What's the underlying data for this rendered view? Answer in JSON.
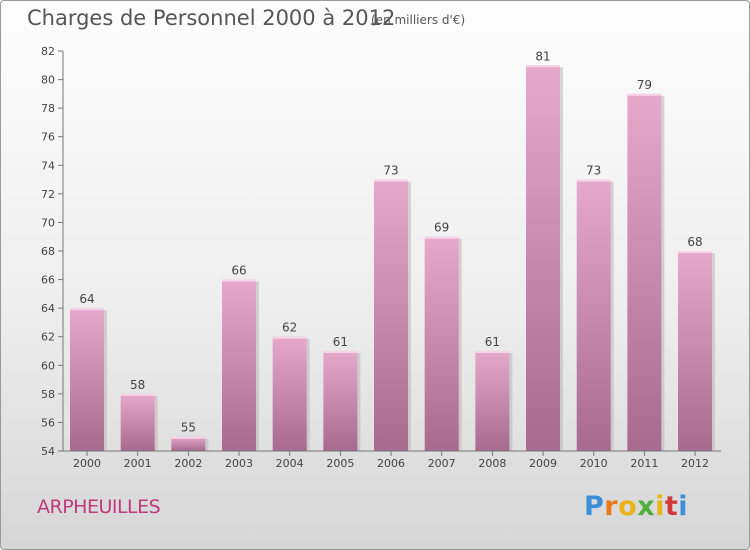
{
  "header": {
    "title": "Charges de Personnel 2000 à 2012",
    "subtitle": "(en milliers d'€)"
  },
  "footer": {
    "place": "ARPHEUILLES",
    "logo": "Proxiti",
    "logo_colors": [
      "#3a8fd8",
      "#e87a1c",
      "#e8b418",
      "#4fae3c",
      "#e8b418",
      "#d23a3a",
      "#3a8fd8"
    ]
  },
  "colors": {
    "bar_top": "#e6a9cc",
    "bar_bottom": "#a8698f",
    "bar_highlight": "#f6d3e6",
    "bar_shadow": "#b8b8b8",
    "place": "#c0397a"
  },
  "chart_data": {
    "type": "bar",
    "title": "Charges de Personnel 2000 à 2012",
    "subtitle": "(en milliers d'€)",
    "categories": [
      "2000",
      "2001",
      "2002",
      "2003",
      "2004",
      "2005",
      "2006",
      "2007",
      "2008",
      "2009",
      "2010",
      "2011",
      "2012"
    ],
    "values": [
      64,
      58,
      55,
      66,
      62,
      61,
      73,
      69,
      61,
      81,
      73,
      79,
      68
    ],
    "data_labels": [
      "64",
      "58",
      "55",
      "66",
      "62",
      "61",
      "73",
      "69",
      "61",
      "81",
      "73",
      "79",
      "68"
    ],
    "ylim": [
      54,
      82
    ],
    "yticks": [
      54,
      56,
      58,
      60,
      62,
      64,
      66,
      68,
      70,
      72,
      74,
      76,
      78,
      80,
      82
    ],
    "grid": false,
    "legend": "none"
  }
}
